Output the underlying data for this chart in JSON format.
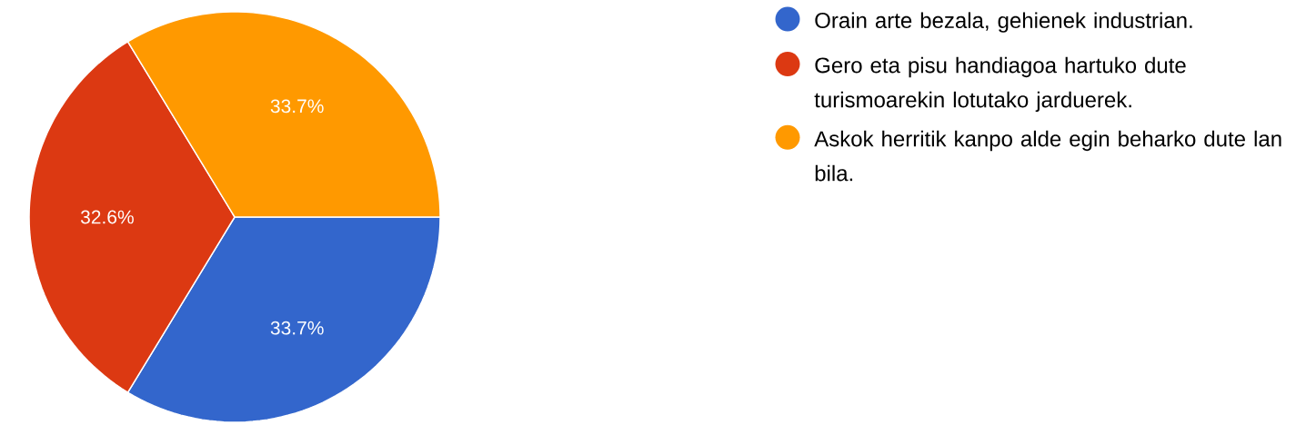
{
  "chart_data": {
    "type": "pie",
    "categories": [
      "Orain arte bezala, gehienek industrian.",
      "Gero eta pisu handiagoa hartuko dute turismoarekin lotutako jarduerek.",
      "Askok herritik kanpo alde egin beharko dute lan bila."
    ],
    "values": [
      33.7,
      32.6,
      33.7
    ],
    "colors": [
      "#3366cc",
      "#dc3912",
      "#ff9900"
    ],
    "value_labels": [
      "33.7%",
      "32.6%",
      "33.7%"
    ],
    "legend": "right"
  }
}
